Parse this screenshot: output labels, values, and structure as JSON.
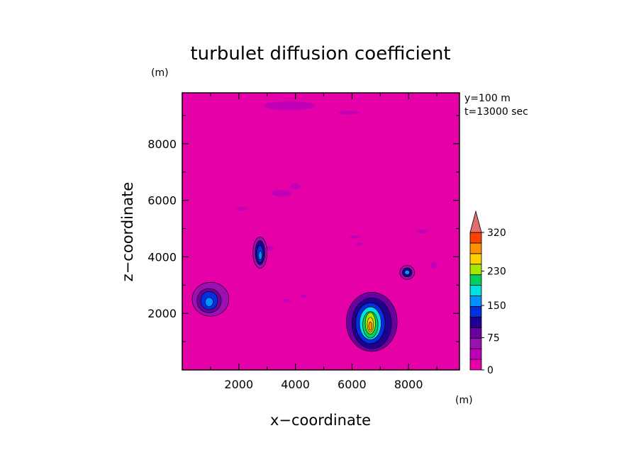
{
  "chart_data": {
    "type": "heatmap",
    "title": "turbulet diffusion coefficient",
    "xlabel": "x−coordinate",
    "ylabel": "z−coordinate",
    "x_unit": "(m)",
    "y_unit": "(m)",
    "xlim": [
      0,
      9800
    ],
    "ylim": [
      0,
      9800
    ],
    "x_ticks": [
      "2000",
      "4000",
      "6000",
      "8000"
    ],
    "y_ticks": [
      "2000",
      "4000",
      "6000",
      "8000"
    ],
    "annotations": [
      "y=100  m",
      "t=13000  sec"
    ],
    "colorbar": {
      "tick_labels": [
        "0",
        "75",
        "150",
        "230",
        "320"
      ],
      "levels": [
        0,
        25,
        50,
        75,
        100,
        125,
        150,
        175,
        200,
        230,
        260,
        290,
        320
      ],
      "colors": [
        "#e600a8",
        "#c000b8",
        "#9a10b0",
        "#6a00a0",
        "#200090",
        "#0030e0",
        "#0090ff",
        "#00e0e0",
        "#00d060",
        "#a8e800",
        "#ffd000",
        "#ff9000",
        "#ff4000"
      ],
      "extend_color": "#e07070",
      "background_level_color": "#e600a8"
    },
    "features": [
      {
        "x": 1000,
        "z": 2500,
        "peak": 160
      },
      {
        "x": 2750,
        "z": 4150,
        "peak": 170
      },
      {
        "x": 6700,
        "z": 1700,
        "peak": 300
      },
      {
        "x": 7950,
        "z": 3450,
        "peak": 150
      }
    ],
    "grid": false
  }
}
